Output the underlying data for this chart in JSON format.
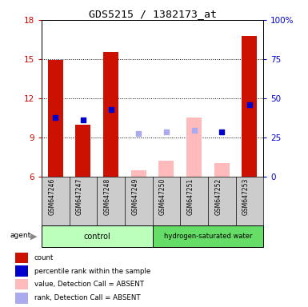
{
  "title": "GDS5215 / 1382173_at",
  "samples": [
    "GSM647246",
    "GSM647247",
    "GSM647248",
    "GSM647249",
    "GSM647250",
    "GSM647251",
    "GSM647252",
    "GSM647253"
  ],
  "ylim_left": [
    6,
    18
  ],
  "ylim_right": [
    0,
    100
  ],
  "yticks_left": [
    6,
    9,
    12,
    15,
    18
  ],
  "yticks_right": [
    0,
    25,
    50,
    75,
    100
  ],
  "ytick_labels_right": [
    "0",
    "25",
    "50",
    "75",
    "100%"
  ],
  "red_bar_heights": [
    14.95,
    10.0,
    15.55,
    null,
    null,
    null,
    null,
    16.75
  ],
  "pink_bar_heights": [
    null,
    null,
    null,
    6.5,
    7.2,
    10.5,
    7.0,
    null
  ],
  "blue_square_vals": [
    10.55,
    10.35,
    11.15,
    null,
    null,
    null,
    9.42,
    11.5
  ],
  "light_blue_square_vals": [
    null,
    null,
    null,
    9.3,
    9.42,
    9.55,
    null,
    null
  ],
  "bar_width": 0.55,
  "red_color": "#cc1100",
  "pink_color": "#ffbbbb",
  "blue_color": "#0000cc",
  "light_blue_color": "#aaaaee",
  "legend_items": [
    {
      "label": "count",
      "color": "#cc1100"
    },
    {
      "label": "percentile rank within the sample",
      "color": "#0000cc"
    },
    {
      "label": "value, Detection Call = ABSENT",
      "color": "#ffbbbb"
    },
    {
      "label": "rank, Detection Call = ABSENT",
      "color": "#aaaaee"
    }
  ],
  "bg_color": "#ffffff",
  "left_tick_color": "#cc0000",
  "right_tick_color": "#0000cc",
  "ctrl_color": "#bbffbb",
  "hsw_color": "#66dd66",
  "label_bg_color": "#cccccc"
}
